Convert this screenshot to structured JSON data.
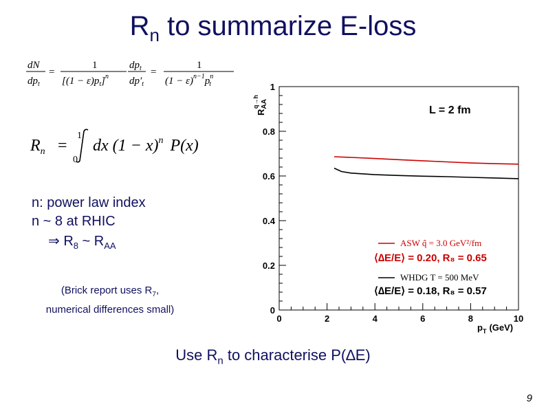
{
  "title": {
    "main": "R",
    "sub": "n",
    "rest": " to summarize E-loss"
  },
  "formula1": {
    "lhs_num": "dN",
    "lhs_den": "dp",
    "lhs_den_sub": "t",
    "eq": "=",
    "f1_num": "1",
    "f1_den": "[(1 − ε)p",
    "f1_den_sub": "t",
    "f1_den_end": "]",
    "f1_den_sup": "n",
    "f2_num": "dp",
    "f2_num_sub": "t",
    "f2_den": "dp′",
    "f2_den_sub": "t",
    "f3_num": "1",
    "f3_den": "(1 − ε)",
    "f3_den_sup": "n−1",
    "f3_den_p": "p",
    "f3_den_p_sup": "n",
    "f3_den_p_sub": "t"
  },
  "formula2": {
    "lhs": "R",
    "lhs_sub": "n",
    "eq": "=",
    "int_upper": "1",
    "int_lower": "0",
    "body": "dx (1 − x)",
    "body_sup": "n",
    "tail": "P(x)"
  },
  "notes": {
    "line1": "n: power law index",
    "line2": "n ~ 8 at RHIC",
    "line3_arrow": "⇒",
    "line3_r8": " R",
    "line3_r8_sub": "8",
    "line3_mid": " ~ R",
    "line3_raa_sub": "AA"
  },
  "brick": {
    "line1_a": "(Brick report uses R",
    "line1_sub": "7",
    "line1_b": ",",
    "line2": "numerical differences small)"
  },
  "bottom": {
    "a": "Use R",
    "sub": "n",
    "b": " to characterise P(∆E)"
  },
  "page_number": "9",
  "chart_data": {
    "type": "line",
    "annotation": "L = 2 fm",
    "ylabel_main": "R",
    "ylabel_sub": "AA",
    "ylabel_sup": "q→h",
    "xlabel_main": "p",
    "xlabel_sub": "T",
    "xlabel_unit": "(GeV)",
    "xlim": [
      0,
      10
    ],
    "ylim": [
      0,
      1
    ],
    "xticks": [
      0,
      2,
      4,
      6,
      8,
      10
    ],
    "yticks": [
      0,
      0.2,
      0.4,
      0.6,
      0.8,
      1
    ],
    "ytick_labels": [
      "0",
      "0.2",
      "0.4",
      "0.6",
      "0.8",
      "1"
    ],
    "grid": false,
    "legend_position": "bottom-right",
    "series": [
      {
        "name": "ASW q̂ = 3.0 GeV²/fm",
        "summary": "⟨∆E/E⟩ = 0.20, R₈ = 0.65",
        "color": "#cc0000",
        "x": [
          2.3,
          3,
          4,
          5,
          6,
          7,
          8,
          9,
          10
        ],
        "y": [
          0.686,
          0.683,
          0.678,
          0.673,
          0.668,
          0.663,
          0.658,
          0.655,
          0.653
        ]
      },
      {
        "name": "WHDG T = 500 MeV",
        "summary": "⟨∆E/E⟩ = 0.18, R₈ = 0.57",
        "color": "#000000",
        "x": [
          2.3,
          2.6,
          3,
          4,
          5,
          6,
          7,
          8,
          9,
          10
        ],
        "y": [
          0.635,
          0.62,
          0.613,
          0.606,
          0.602,
          0.599,
          0.597,
          0.594,
          0.591,
          0.588
        ]
      }
    ]
  }
}
